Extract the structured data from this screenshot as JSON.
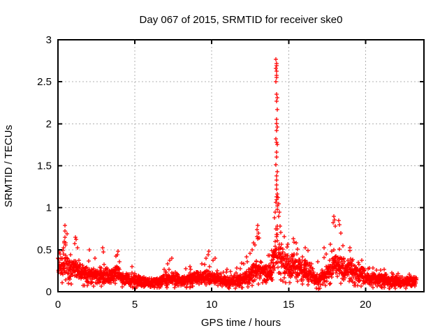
{
  "chart_data": {
    "type": "scatter",
    "title": "Day 067 of 2015, SRMTID for receiver ske0",
    "xlabel": "GPS time / hours",
    "ylabel": "SRMTID / TECUs",
    "xlim": [
      0,
      23.8
    ],
    "ylim": [
      0,
      3
    ],
    "xticks": [
      0,
      5,
      10,
      15,
      20
    ],
    "xtick_labels": [
      "0",
      "5",
      "10",
      "15",
      "20"
    ],
    "yticks": [
      0,
      0.5,
      1,
      1.5,
      2,
      2.5,
      3
    ],
    "ytick_labels": [
      "0",
      "0.5",
      "1",
      "1.5",
      "2",
      "2.5",
      "3"
    ],
    "grid": true,
    "grid_style": "dashed",
    "legend": "none",
    "marker": "plus",
    "marker_size_px": 7,
    "colors": {
      "points": "#ff0000",
      "grid": "#b0b0b0",
      "axis": "#000000",
      "text": "#000000",
      "background": "#ffffff"
    },
    "data_x_range": [
      0.02,
      23.3
    ],
    "n_points": 2400,
    "seed": 20150067,
    "envelope_x_med_max": [
      [
        0.0,
        0.28,
        0.55
      ],
      [
        0.3,
        0.3,
        0.62
      ],
      [
        0.5,
        0.3,
        0.83
      ],
      [
        0.8,
        0.26,
        0.5
      ],
      [
        1.1,
        0.28,
        0.66
      ],
      [
        1.5,
        0.22,
        0.46
      ],
      [
        2.0,
        0.2,
        0.45
      ],
      [
        2.5,
        0.18,
        0.4
      ],
      [
        2.9,
        0.2,
        0.52
      ],
      [
        3.3,
        0.17,
        0.38
      ],
      [
        3.9,
        0.2,
        0.48
      ],
      [
        4.3,
        0.15,
        0.32
      ],
      [
        4.8,
        0.13,
        0.3
      ],
      [
        5.3,
        0.12,
        0.28
      ],
      [
        5.8,
        0.1,
        0.22
      ],
      [
        6.3,
        0.11,
        0.25
      ],
      [
        6.8,
        0.13,
        0.32
      ],
      [
        7.3,
        0.15,
        0.38
      ],
      [
        7.8,
        0.15,
        0.35
      ],
      [
        8.3,
        0.13,
        0.3
      ],
      [
        8.8,
        0.15,
        0.35
      ],
      [
        9.3,
        0.16,
        0.4
      ],
      [
        9.8,
        0.17,
        0.46
      ],
      [
        10.3,
        0.15,
        0.38
      ],
      [
        10.8,
        0.12,
        0.3
      ],
      [
        11.3,
        0.12,
        0.3
      ],
      [
        11.8,
        0.14,
        0.35
      ],
      [
        12.3,
        0.17,
        0.45
      ],
      [
        12.7,
        0.22,
        0.6
      ],
      [
        13.0,
        0.26,
        0.75
      ],
      [
        13.3,
        0.22,
        0.55
      ],
      [
        13.6,
        0.2,
        0.5
      ],
      [
        13.9,
        0.25,
        0.62
      ],
      [
        14.1,
        0.45,
        1.1
      ],
      [
        14.25,
        0.55,
        1.3
      ],
      [
        14.4,
        0.45,
        1.0
      ],
      [
        14.6,
        0.35,
        0.8
      ],
      [
        14.9,
        0.3,
        0.6
      ],
      [
        15.3,
        0.3,
        0.62
      ],
      [
        15.7,
        0.28,
        0.55
      ],
      [
        16.1,
        0.25,
        0.52
      ],
      [
        16.5,
        0.2,
        0.45
      ],
      [
        16.9,
        0.14,
        0.36
      ],
      [
        17.2,
        0.17,
        0.45
      ],
      [
        17.6,
        0.25,
        0.6
      ],
      [
        17.9,
        0.33,
        0.88
      ],
      [
        18.2,
        0.32,
        0.85
      ],
      [
        18.5,
        0.28,
        0.6
      ],
      [
        18.9,
        0.25,
        0.52
      ],
      [
        19.3,
        0.22,
        0.48
      ],
      [
        19.7,
        0.2,
        0.42
      ],
      [
        20.1,
        0.17,
        0.38
      ],
      [
        20.5,
        0.15,
        0.32
      ],
      [
        21.0,
        0.14,
        0.3
      ],
      [
        21.5,
        0.13,
        0.28
      ],
      [
        22.0,
        0.12,
        0.26
      ],
      [
        22.5,
        0.11,
        0.24
      ],
      [
        22.9,
        0.13,
        0.27
      ],
      [
        23.3,
        0.13,
        0.26
      ]
    ],
    "spike_points": [
      [
        14.18,
        2.77
      ],
      [
        14.2,
        2.72
      ],
      [
        14.22,
        2.69
      ],
      [
        14.19,
        2.66
      ],
      [
        14.21,
        2.63
      ],
      [
        14.23,
        2.58
      ],
      [
        14.2,
        2.55
      ],
      [
        14.19,
        2.5
      ],
      [
        14.22,
        2.35
      ],
      [
        14.24,
        2.31
      ],
      [
        14.21,
        2.27
      ],
      [
        14.25,
        2.17
      ],
      [
        14.2,
        2.05
      ],
      [
        14.22,
        2.0
      ],
      [
        14.24,
        1.96
      ],
      [
        14.21,
        1.92
      ],
      [
        14.18,
        1.82
      ],
      [
        14.23,
        1.78
      ],
      [
        14.27,
        1.75
      ],
      [
        14.2,
        1.66
      ],
      [
        14.22,
        1.6
      ],
      [
        14.19,
        1.51
      ],
      [
        14.24,
        1.43
      ],
      [
        14.21,
        1.38
      ],
      [
        14.23,
        1.33
      ],
      [
        14.2,
        1.27
      ],
      [
        14.22,
        1.22
      ],
      [
        14.25,
        1.16
      ],
      [
        14.21,
        1.13
      ],
      [
        14.23,
        1.1
      ],
      [
        14.19,
        1.06
      ],
      [
        14.24,
        1.02
      ],
      [
        14.27,
        0.98
      ],
      [
        14.3,
        1.12
      ],
      [
        14.35,
        1.05
      ],
      [
        14.38,
        0.95
      ],
      [
        14.33,
        0.9
      ],
      [
        14.13,
        0.95
      ],
      [
        14.1,
        0.88
      ]
    ],
    "outlier_points": [
      [
        0.45,
        0.79
      ],
      [
        0.44,
        0.72
      ],
      [
        0.46,
        0.65
      ],
      [
        0.4,
        0.6
      ],
      [
        0.52,
        0.58
      ],
      [
        1.12,
        0.65
      ],
      [
        1.18,
        0.62
      ],
      [
        1.08,
        0.57
      ],
      [
        1.25,
        0.52
      ],
      [
        2.05,
        0.5
      ],
      [
        2.9,
        0.52
      ],
      [
        2.95,
        0.47
      ],
      [
        3.9,
        0.48
      ],
      [
        3.85,
        0.44
      ],
      [
        7.4,
        0.4
      ],
      [
        9.8,
        0.48
      ],
      [
        9.75,
        0.44
      ],
      [
        10.2,
        0.4
      ],
      [
        12.7,
        0.58
      ],
      [
        12.95,
        0.74
      ],
      [
        13.0,
        0.79
      ],
      [
        13.05,
        0.7
      ],
      [
        13.1,
        0.64
      ],
      [
        15.3,
        0.63
      ],
      [
        15.5,
        0.58
      ],
      [
        16.1,
        0.52
      ],
      [
        16.8,
        0.04
      ],
      [
        16.95,
        0.03
      ],
      [
        17.05,
        0.04
      ],
      [
        17.3,
        0.52
      ],
      [
        17.9,
        0.82
      ],
      [
        17.95,
        0.9
      ],
      [
        18.0,
        0.86
      ],
      [
        18.05,
        0.78
      ],
      [
        18.25,
        0.85
      ],
      [
        18.3,
        0.8
      ],
      [
        18.4,
        0.7
      ],
      [
        19.0,
        0.52
      ]
    ]
  }
}
